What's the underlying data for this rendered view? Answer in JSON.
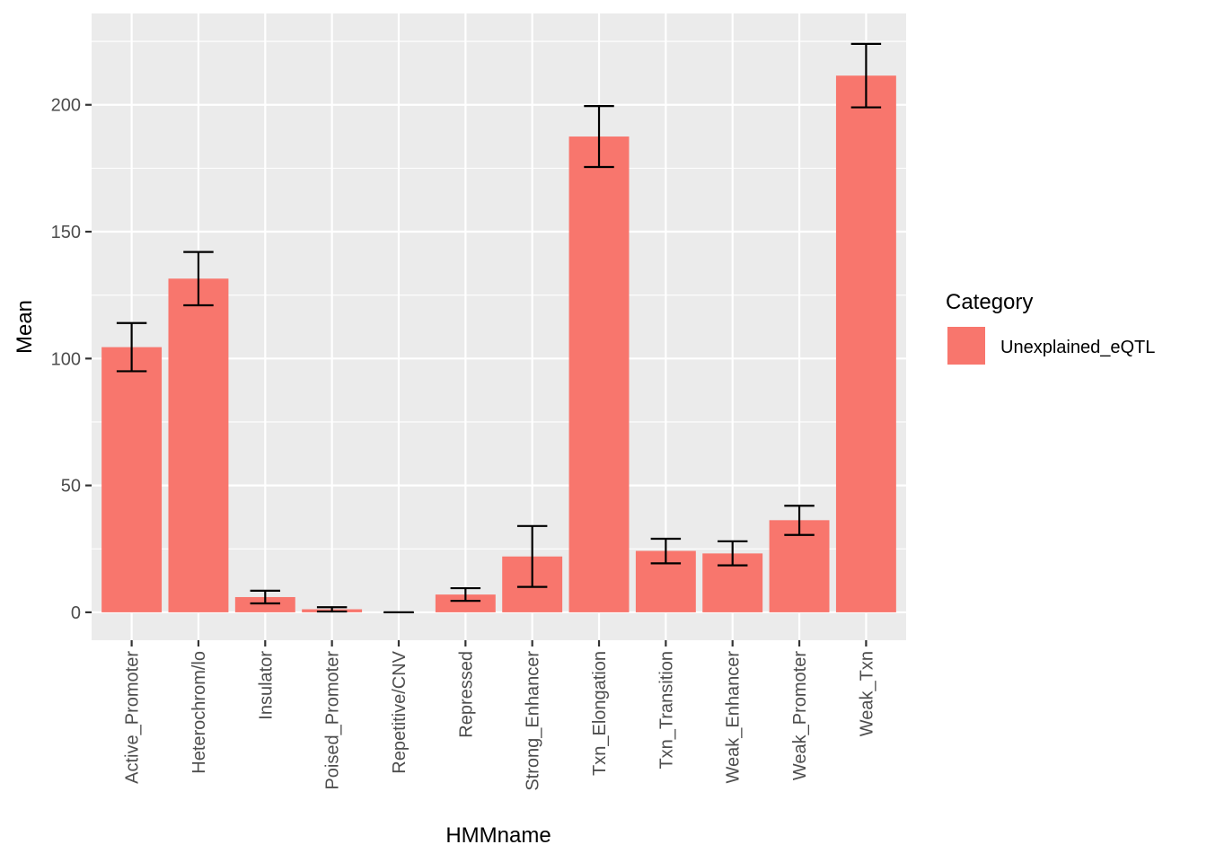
{
  "chart_data": {
    "type": "bar",
    "categories": [
      "Active_Promoter",
      "Heterochrom/lo",
      "Insulator",
      "Poised_Promoter",
      "Repetitive/CNV",
      "Repressed",
      "Strong_Enhancer",
      "Txn_Elongation",
      "Txn_Transition",
      "Weak_Enhancer",
      "Weak_Promoter",
      "Weak_Txn"
    ],
    "values": [
      104.5,
      131.5,
      6,
      1.2,
      0,
      7,
      22,
      187.5,
      24.2,
      23.2,
      36.3,
      211.5
    ],
    "error_low": [
      95,
      121,
      3.5,
      0.3,
      0,
      4.5,
      10,
      175.5,
      19.3,
      18.5,
      30.5,
      199
    ],
    "error_high": [
      114,
      142,
      8.5,
      2,
      0,
      9.5,
      34,
      199.5,
      29,
      28,
      42,
      224
    ],
    "xlabel": "HMMname",
    "ylabel": "Mean",
    "ylim": [
      -11,
      236
    ],
    "yticks": [
      0,
      50,
      100,
      150,
      200
    ],
    "ytick_labels": [
      "0",
      "50",
      "100",
      "150",
      "200"
    ],
    "grid": true,
    "legend": {
      "title": "Category",
      "entries": [
        {
          "label": "Unexplained_eQTL",
          "color": "#F8766D"
        }
      ],
      "position": "right"
    },
    "colors": {
      "bar": "#F8766D",
      "panel": "#EBEBEB",
      "grid": "#FFFFFF",
      "errorbar": "#000000"
    }
  }
}
